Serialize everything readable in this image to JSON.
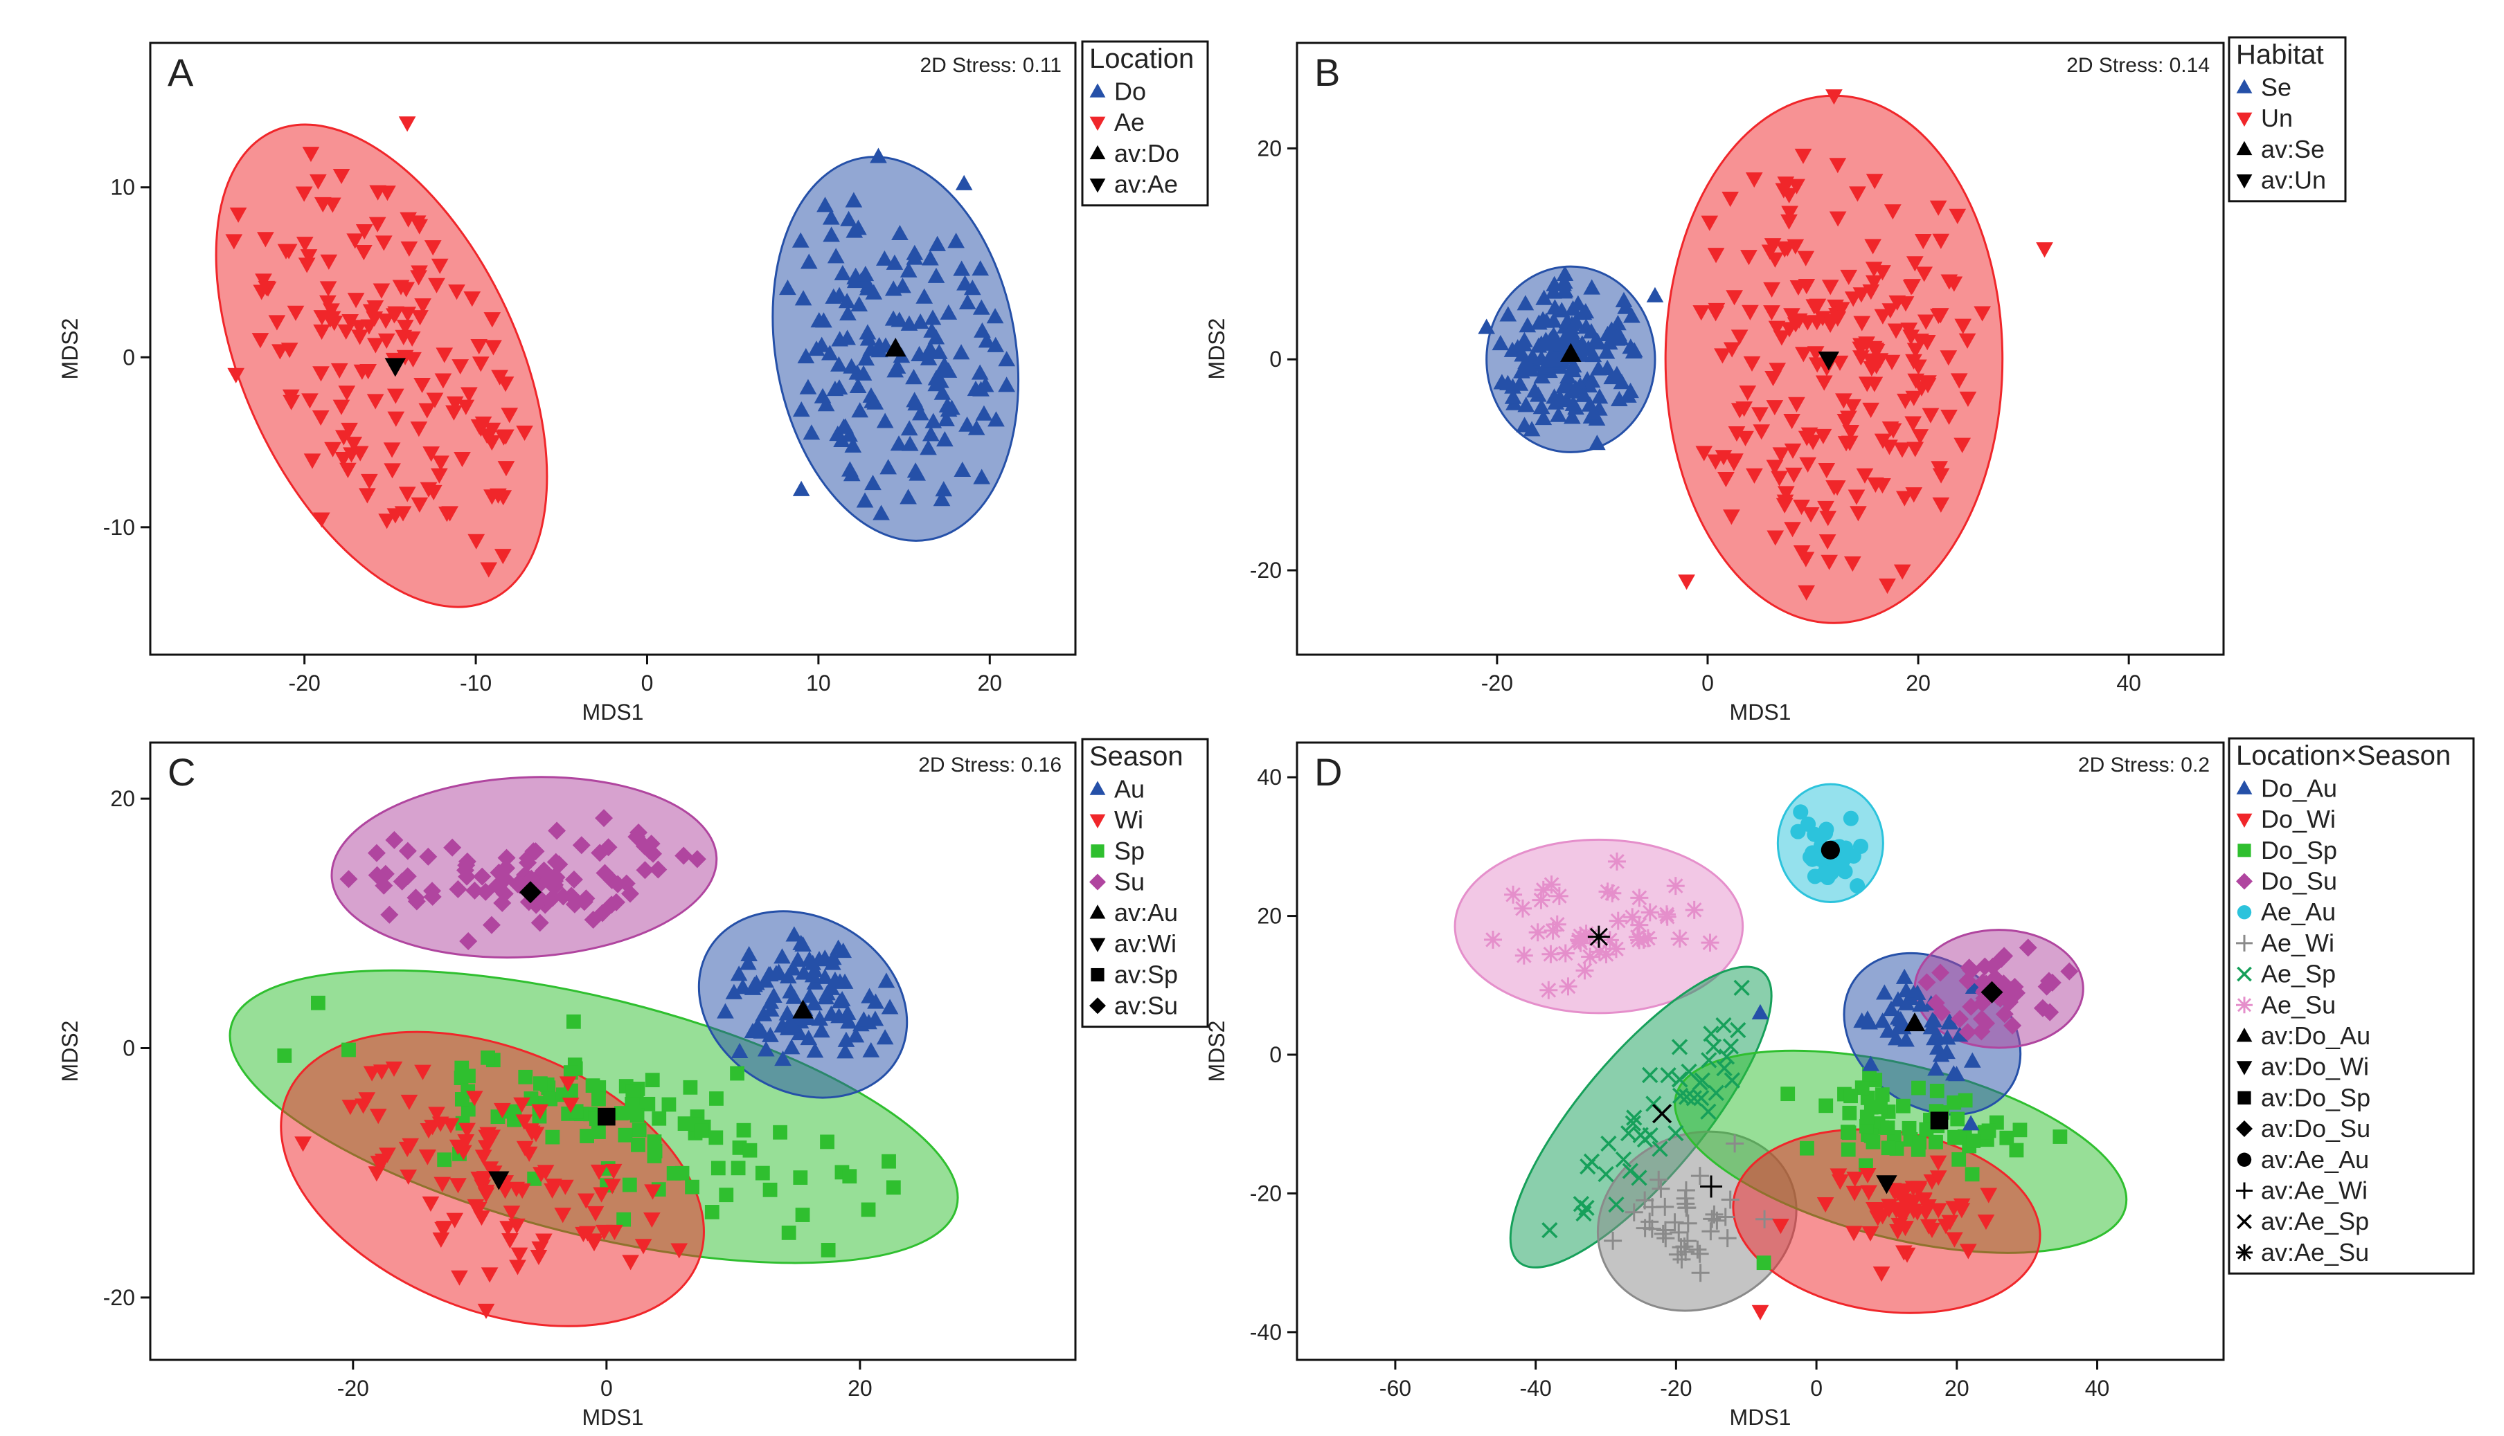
{
  "colors": {
    "blue": "#2550a8",
    "red": "#f0262a",
    "green": "#2fbf2f",
    "magenta": "#b0459f",
    "cyan": "#2cc3dc",
    "gray": "#8a8a8a",
    "darkgreen": "#16a05a",
    "pink": "#e58fcb",
    "black": "#000000"
  },
  "chart_data": [
    {
      "type": "scatter",
      "panel_label": "A",
      "stress_text": "2D Stress: 0.11",
      "xlabel": "MDS1",
      "ylabel": "MDS2",
      "xlim": [
        -29,
        25
      ],
      "ylim": [
        -17.5,
        18.5
      ],
      "xticks": [
        -20,
        -10,
        0,
        10,
        20
      ],
      "yticks": [
        -10,
        0,
        10
      ],
      "legend": {
        "title": "Location",
        "entries": [
          {
            "label": "Do",
            "marker": "triangle-up",
            "color": "blue"
          },
          {
            "label": "Ae",
            "marker": "triangle-down",
            "color": "red"
          },
          {
            "label": "av:Do",
            "marker": "triangle-up",
            "color": "black"
          },
          {
            "label": "av:Ae",
            "marker": "triangle-down",
            "color": "black"
          }
        ]
      },
      "groups": [
        {
          "name": "Do",
          "marker": "triangle-up",
          "color": "blue",
          "n": 150,
          "seed": 11,
          "center": [
            14.5,
            0.5
          ],
          "spread": [
            4.2,
            5.6
          ],
          "angle": 10,
          "ellipse": {
            "center": [
              14.5,
              0.5
            ],
            "rx": 7.0,
            "ry": 11.4,
            "angle": 10
          },
          "outliers": [
            [
              9,
              -7.8
            ],
            [
              18.5,
              10.2
            ],
            [
              13.5,
              11.8
            ]
          ]
        },
        {
          "name": "Ae",
          "marker": "triangle-down",
          "color": "red",
          "n": 150,
          "seed": 23,
          "center": [
            -15,
            -0.5
          ],
          "spread": [
            4.0,
            7.5
          ],
          "angle": 28,
          "ellipse": {
            "center": [
              -15.5,
              -0.5
            ],
            "rx": 8.0,
            "ry": 15.2,
            "angle": 25
          },
          "outliers": [
            [
              -14,
              13.8
            ],
            [
              -19,
              -9.5
            ],
            [
              -24,
              -1
            ]
          ]
        }
      ],
      "averages": [
        {
          "label": "av:Do",
          "marker": "triangle-up",
          "x": 14.5,
          "y": 0.5
        },
        {
          "label": "av:Ae",
          "marker": "triangle-down",
          "x": -14.7,
          "y": -0.5
        }
      ]
    },
    {
      "type": "scatter",
      "panel_label": "B",
      "stress_text": "2D Stress: 0.14",
      "xlabel": "MDS1",
      "ylabel": "MDS2",
      "xlim": [
        -39,
        49
      ],
      "ylim": [
        -28,
        30
      ],
      "xticks": [
        -20,
        0,
        20,
        40
      ],
      "yticks": [
        -20,
        0,
        20
      ],
      "legend": {
        "title": "Habitat",
        "entries": [
          {
            "label": "Se",
            "marker": "triangle-up",
            "color": "blue"
          },
          {
            "label": "Un",
            "marker": "triangle-down",
            "color": "red"
          },
          {
            "label": "av:Se",
            "marker": "triangle-up",
            "color": "black"
          },
          {
            "label": "av:Un",
            "marker": "triangle-down",
            "color": "black"
          }
        ]
      },
      "groups": [
        {
          "name": "Un",
          "marker": "triangle-down",
          "color": "red",
          "n": 200,
          "seed": 37,
          "center": [
            12,
            0
          ],
          "spread": [
            6.8,
            10.5
          ],
          "angle": 0,
          "ellipse": {
            "center": [
              12,
              0
            ],
            "rx": 16,
            "ry": 25,
            "angle": 0
          },
          "outliers": [
            [
              -2,
              -21
            ],
            [
              32,
              10.5
            ],
            [
              12,
              25
            ]
          ]
        },
        {
          "name": "Se",
          "marker": "triangle-up",
          "color": "blue",
          "n": 150,
          "seed": 41,
          "center": [
            -13,
            0
          ],
          "spread": [
            3.6,
            3.6
          ],
          "angle": 0,
          "ellipse": {
            "center": [
              -13,
              0
            ],
            "rx": 8,
            "ry": 8.8,
            "angle": 0
          },
          "outliers": [
            [
              -5,
              6
            ],
            [
              -21,
              3
            ],
            [
              -10.5,
              -8
            ]
          ]
        }
      ],
      "averages": [
        {
          "label": "av:Se",
          "marker": "triangle-up",
          "x": -13,
          "y": 0.5
        },
        {
          "label": "av:Un",
          "marker": "triangle-down",
          "x": 11.5,
          "y": 0
        }
      ]
    },
    {
      "type": "scatter",
      "panel_label": "C",
      "stress_text": "2D Stress: 0.16",
      "xlabel": "MDS1",
      "ylabel": "MDS2",
      "xlim": [
        -36,
        37
      ],
      "ylim": [
        -25,
        24.5
      ],
      "xticks": [
        -20,
        0,
        20
      ],
      "yticks": [
        -20,
        0,
        20
      ],
      "legend": {
        "title": "Season",
        "entries": [
          {
            "label": "Au",
            "marker": "triangle-up",
            "color": "blue"
          },
          {
            "label": "Wi",
            "marker": "triangle-down",
            "color": "red"
          },
          {
            "label": "Sp",
            "marker": "square",
            "color": "green"
          },
          {
            "label": "Su",
            "marker": "diamond",
            "color": "magenta"
          },
          {
            "label": "av:Au",
            "marker": "triangle-up",
            "color": "black"
          },
          {
            "label": "av:Wi",
            "marker": "triangle-down",
            "color": "black"
          },
          {
            "label": "av:Sp",
            "marker": "square",
            "color": "black"
          },
          {
            "label": "av:Su",
            "marker": "diamond",
            "color": "black"
          }
        ]
      },
      "groups": [
        {
          "name": "Sp",
          "marker": "square",
          "color": "green",
          "n": 100,
          "seed": 53,
          "center": [
            2,
            -6
          ],
          "spread": [
            10.5,
            2.7
          ],
          "angle": -14,
          "ellipse": {
            "center": [
              -1,
              -5.5
            ],
            "rx": 29.5,
            "ry": 9.5,
            "angle": -14
          },
          "outliers": [
            [
              17.5,
              -16.2
            ]
          ]
        },
        {
          "name": "Wi",
          "marker": "triangle-down",
          "color": "red",
          "n": 100,
          "seed": 59,
          "center": [
            -9,
            -10.5
          ],
          "spread": [
            7.5,
            3.2
          ],
          "angle": -22,
          "ellipse": {
            "center": [
              -9,
              -10.5
            ],
            "rx": 17.5,
            "ry": 10.5,
            "angle": -22
          },
          "outliers": [
            [
              -9.5,
              -21
            ]
          ]
        },
        {
          "name": "Su",
          "marker": "diamond",
          "color": "magenta",
          "n": 90,
          "seed": 61,
          "center": [
            -6.5,
            14
          ],
          "spread": [
            7.5,
            2.2
          ],
          "angle": 3,
          "ellipse": {
            "center": [
              -6.5,
              14.5
            ],
            "rx": 15.2,
            "ry": 7.2,
            "angle": 3
          },
          "outliers": []
        },
        {
          "name": "Au",
          "marker": "triangle-up",
          "color": "blue",
          "n": 90,
          "seed": 67,
          "center": [
            15.5,
            3.5
          ],
          "spread": [
            3.2,
            2.6
          ],
          "angle": -20,
          "ellipse": {
            "center": [
              15.5,
              3.5
            ],
            "rx": 8.6,
            "ry": 7.0,
            "angle": -30
          },
          "outliers": []
        }
      ],
      "averages": [
        {
          "label": "av:Au",
          "marker": "triangle-up",
          "x": 15.5,
          "y": 3
        },
        {
          "label": "av:Wi",
          "marker": "triangle-down",
          "x": -8.5,
          "y": -10.5
        },
        {
          "label": "av:Sp",
          "marker": "square",
          "x": 0,
          "y": -5.5
        },
        {
          "label": "av:Su",
          "marker": "diamond",
          "x": -6,
          "y": 12.5
        }
      ]
    },
    {
      "type": "scatter",
      "panel_label": "D",
      "stress_text": "2D Stress: 0.2",
      "xlabel": "MDS1",
      "ylabel": "MDS2",
      "xlim": [
        -74,
        58
      ],
      "ylim": [
        -44,
        45
      ],
      "xticks": [
        -60,
        -40,
        -20,
        0,
        20,
        40
      ],
      "yticks": [
        -40,
        -20,
        0,
        20,
        40
      ],
      "legend": {
        "title": "Location×Season",
        "entries": [
          {
            "label": "Do_Au",
            "marker": "triangle-up",
            "color": "blue"
          },
          {
            "label": "Do_Wi",
            "marker": "triangle-down",
            "color": "red"
          },
          {
            "label": "Do_Sp",
            "marker": "square",
            "color": "green"
          },
          {
            "label": "Do_Su",
            "marker": "diamond",
            "color": "magenta"
          },
          {
            "label": "Ae_Au",
            "marker": "circle",
            "color": "cyan"
          },
          {
            "label": "Ae_Wi",
            "marker": "plus",
            "color": "gray"
          },
          {
            "label": "Ae_Sp",
            "marker": "cross",
            "color": "darkgreen"
          },
          {
            "label": "Ae_Su",
            "marker": "star",
            "color": "pink"
          },
          {
            "label": "av:Do_Au",
            "marker": "triangle-up",
            "color": "black"
          },
          {
            "label": "av:Do_Wi",
            "marker": "triangle-down",
            "color": "black"
          },
          {
            "label": "av:Do_Sp",
            "marker": "square",
            "color": "black"
          },
          {
            "label": "av:Do_Su",
            "marker": "diamond",
            "color": "black"
          },
          {
            "label": "av:Ae_Au",
            "marker": "circle",
            "color": "black"
          },
          {
            "label": "av:Ae_Wi",
            "marker": "plus",
            "color": "black"
          },
          {
            "label": "av:Ae_Sp",
            "marker": "cross",
            "color": "black"
          },
          {
            "label": "av:Ae_Su",
            "marker": "star",
            "color": "black"
          }
        ]
      },
      "groups": [
        {
          "name": "Ae_Su",
          "marker": "star",
          "color": "pink",
          "n": 45,
          "seed": 71,
          "center": [
            -31,
            18
          ],
          "spread": [
            8.5,
            4.3
          ],
          "angle": 0,
          "ellipse": {
            "center": [
              -31,
              18.5
            ],
            "rx": 20.5,
            "ry": 12.5,
            "angle": 0
          },
          "outliers": []
        },
        {
          "name": "Ae_Au",
          "marker": "circle",
          "color": "cyan",
          "n": 30,
          "seed": 73,
          "center": [
            2,
            30
          ],
          "spread": [
            2.5,
            3.0
          ],
          "angle": 0,
          "ellipse": {
            "center": [
              2,
              30.5
            ],
            "rx": 7.5,
            "ry": 8.5,
            "angle": 0
          },
          "outliers": []
        },
        {
          "name": "Ae_Sp",
          "marker": "cross",
          "color": "darkgreen",
          "n": 45,
          "seed": 79,
          "center": [
            -23,
            -9.5
          ],
          "spread": [
            11,
            2.3
          ],
          "angle": 50,
          "ellipse": {
            "center": [
              -25,
              -9
            ],
            "rx": 27,
            "ry": 8.8,
            "angle": 50
          },
          "outliers": []
        },
        {
          "name": "Ae_Wi",
          "marker": "plus",
          "color": "gray",
          "n": 40,
          "seed": 83,
          "center": [
            -18,
            -24
          ],
          "spread": [
            5.5,
            4.0
          ],
          "angle": 10,
          "ellipse": {
            "center": [
              -17,
              -24
            ],
            "rx": 14.5,
            "ry": 12.5,
            "angle": 25
          },
          "outliers": []
        },
        {
          "name": "Do_Sp",
          "marker": "square",
          "color": "green",
          "n": 60,
          "seed": 89,
          "center": [
            16,
            -10
          ],
          "spread": [
            9.5,
            3.5
          ],
          "angle": -8,
          "ellipse": {
            "center": [
              12,
              -14
            ],
            "rx": 33,
            "ry": 12.5,
            "angle": -14
          },
          "outliers": [
            [
              -7.5,
              -30
            ]
          ]
        },
        {
          "name": "Do_Wi",
          "marker": "triangle-down",
          "color": "red",
          "n": 60,
          "seed": 97,
          "center": [
            10,
            -22
          ],
          "spread": [
            7.5,
            3.2
          ],
          "angle": 0,
          "ellipse": {
            "center": [
              10,
              -24
            ],
            "rx": 22,
            "ry": 13,
            "angle": -8
          },
          "outliers": [
            [
              -8,
              -37
            ]
          ]
        },
        {
          "name": "Do_Au",
          "marker": "triangle-up",
          "color": "blue",
          "n": 40,
          "seed": 101,
          "center": [
            14,
            4.5
          ],
          "spread": [
            4.5,
            3.2
          ],
          "angle": -10,
          "ellipse": {
            "center": [
              16.5,
              3
            ],
            "rx": 13.5,
            "ry": 10.5,
            "angle": -35
          },
          "outliers": [
            [
              22,
              -10
            ],
            [
              -8,
              6
            ]
          ]
        },
        {
          "name": "Do_Su",
          "marker": "diamond",
          "color": "magenta",
          "n": 45,
          "seed": 103,
          "center": [
            26,
            9.5
          ],
          "spread": [
            4.8,
            3.0
          ],
          "angle": 0,
          "ellipse": {
            "center": [
              26,
              9.5
            ],
            "rx": 12,
            "ry": 8.5,
            "angle": 0
          },
          "outliers": []
        }
      ],
      "averages": [
        {
          "label": "av:Do_Au",
          "marker": "triangle-up",
          "x": 14,
          "y": 4.5
        },
        {
          "label": "av:Do_Wi",
          "marker": "triangle-down",
          "x": 10,
          "y": -18.5
        },
        {
          "label": "av:Do_Sp",
          "marker": "square",
          "x": 17.5,
          "y": -9.5
        },
        {
          "label": "av:Do_Su",
          "marker": "diamond",
          "x": 25,
          "y": 9
        },
        {
          "label": "av:Ae_Au",
          "marker": "circle",
          "x": 2,
          "y": 29.5
        },
        {
          "label": "av:Ae_Wi",
          "marker": "plus",
          "x": -15,
          "y": -19
        },
        {
          "label": "av:Ae_Sp",
          "marker": "cross",
          "x": -22,
          "y": -8.5
        },
        {
          "label": "av:Ae_Su",
          "marker": "star",
          "x": -31,
          "y": 17
        }
      ]
    }
  ]
}
